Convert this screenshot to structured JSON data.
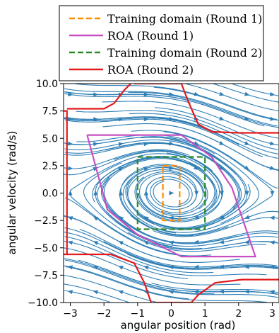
{
  "chart_data": {
    "type": "line",
    "xlabel": "angular position (rad)",
    "ylabel": "angular velocity (rad/s)",
    "xlim": [
      -3.2,
      3.2
    ],
    "ylim": [
      -10,
      10
    ],
    "xticks": [
      -3,
      -2,
      -1,
      0,
      1,
      2,
      3
    ],
    "xtick_labels": [
      "−3",
      "−2",
      "−1",
      "0",
      "1",
      "2",
      "3"
    ],
    "yticks": [
      -10,
      -7.5,
      -5,
      -2.5,
      0,
      2.5,
      5,
      7.5,
      10
    ],
    "ytick_labels": [
      "−10.0",
      "−7.5",
      "−5.0",
      "−2.5",
      "0.0",
      "2.5",
      "5.0",
      "7.5",
      "10.0"
    ],
    "grid": false,
    "legend_position": "top-right",
    "background": "streamlines of the pendulum vector field",
    "streamline_color": "#2f7fb6",
    "series": [
      {
        "name": "Training domain (Round 1)",
        "style": "dashed",
        "color": "#ff8c00",
        "x": [
          -0.25,
          0.25,
          0.25,
          -0.25,
          -0.25
        ],
        "y": [
          2.5,
          2.5,
          -2.5,
          -2.5,
          2.5
        ]
      },
      {
        "name": "ROA (Round 1)",
        "style": "solid",
        "color": "#c84fc2",
        "x": [
          -2.5,
          0.3,
          1.2,
          1.8,
          2.5,
          0.3,
          -1.0,
          -1.9,
          -2.5
        ],
        "y": [
          5.3,
          5.3,
          3.3,
          0.5,
          -5.8,
          -5.8,
          -3.8,
          -1.5,
          5.3
        ]
      },
      {
        "name": "Training domain (Round 2)",
        "style": "dashed",
        "color": "#2a8a2a",
        "x": [
          -1.0,
          1.0,
          1.0,
          -1.0,
          -1.0
        ],
        "y": [
          3.3,
          3.3,
          -3.3,
          -3.3,
          3.3
        ]
      },
      {
        "name": "ROA (Round 2)",
        "style": "solid",
        "color": "#e41a1c",
        "segments": [
          {
            "x": [
              -3.2,
              -3.1,
              -3.1,
              -3.2
            ],
            "y": [
              7.5,
              7.5,
              -5.6,
              -5.6
            ]
          },
          {
            "x": [
              -3.1,
              -2.0,
              -1.7,
              -1.4,
              -1.2
            ],
            "y": [
              7.7,
              7.7,
              8.2,
              9.4,
              10.0
            ]
          },
          {
            "x": [
              -1.1,
              0.0,
              0.3
            ],
            "y": [
              10.0,
              10.0,
              10.0
            ]
          },
          {
            "x": [
              0.3,
              0.5,
              0.8,
              1.2,
              2.0,
              3.2
            ],
            "y": [
              10.0,
              8.4,
              6.3,
              5.6,
              5.5,
              5.5
            ]
          },
          {
            "x": [
              -3.1,
              -1.8,
              -1.1,
              -0.8,
              -0.6
            ],
            "y": [
              -5.6,
              -5.6,
              -6.4,
              -8.2,
              -10.0
            ]
          },
          {
            "x": [
              -0.5,
              0.0,
              0.6
            ],
            "y": [
              -10.0,
              -10.0,
              -10.0
            ]
          },
          {
            "x": [
              0.6,
              0.8,
              1.3,
              2.1,
              3.2
            ],
            "y": [
              -10.0,
              -9.3,
              -8.2,
              -7.9,
              -7.9
            ]
          }
        ]
      }
    ]
  }
}
